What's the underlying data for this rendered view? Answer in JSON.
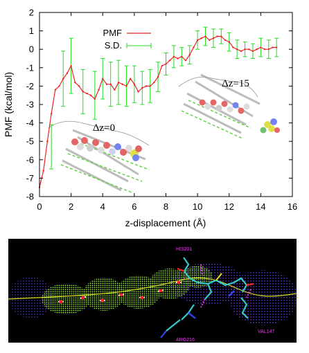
{
  "chart_data": {
    "type": "line",
    "title": "",
    "xlabel": "z-displacement (Å)",
    "ylabel": "PMF (kcal/mol)",
    "xlim": [
      0,
      16
    ],
    "ylim": [
      -8,
      2
    ],
    "xticks": [
      "0",
      "2",
      "4",
      "6",
      "8",
      "10",
      "12",
      "14",
      "16"
    ],
    "yticks": [
      "-8",
      "-7",
      "-6",
      "-5",
      "-4",
      "-3",
      "-2",
      "-1",
      "0",
      "1",
      "2"
    ],
    "legend_position": "top-center",
    "series": [
      {
        "name": "PMF",
        "color": "#ee2222",
        "x": [
          0.0,
          0.25,
          0.5,
          0.75,
          1.0,
          1.25,
          1.5,
          1.75,
          2.0,
          2.25,
          2.5,
          2.75,
          3.0,
          3.25,
          3.5,
          3.75,
          4.0,
          4.25,
          4.5,
          4.75,
          5.0,
          5.25,
          5.5,
          5.75,
          6.0,
          6.25,
          6.5,
          6.75,
          7.0,
          7.25,
          7.5,
          7.75,
          8.0,
          8.25,
          8.5,
          8.75,
          9.0,
          9.25,
          9.5,
          9.75,
          10.0,
          10.25,
          10.5,
          10.75,
          11.0,
          11.25,
          11.5,
          11.75,
          12.0,
          12.25,
          12.5,
          12.75,
          13.0,
          13.25,
          13.5,
          13.75,
          14.0,
          14.25,
          14.5,
          14.75,
          15.0
        ],
        "y": [
          -7.5,
          -6.6,
          -5.0,
          -3.5,
          -2.2,
          -2.0,
          -1.6,
          -1.3,
          -0.9,
          -1.8,
          -2.0,
          -2.3,
          -2.4,
          -2.5,
          -2.7,
          -2.2,
          -1.6,
          -1.9,
          -1.9,
          -2.2,
          -1.8,
          -1.9,
          -2.0,
          -1.6,
          -1.9,
          -2.3,
          -2.1,
          -2.0,
          -2.0,
          -1.8,
          -1.5,
          -0.9,
          -0.8,
          -0.6,
          -0.4,
          -0.5,
          -0.4,
          -0.6,
          -0.3,
          0.1,
          0.5,
          0.6,
          0.7,
          0.5,
          0.6,
          0.7,
          0.7,
          0.5,
          0.4,
          0.1,
          0.0,
          -0.1,
          0.0,
          0.0,
          -0.1,
          0.0,
          0.1,
          0.0,
          0.0,
          0.1,
          0.1
        ]
      },
      {
        "name": "S.D.",
        "color": "#22dd22",
        "type": "errorbar",
        "x": [
          0.75,
          1.5,
          2.0,
          2.75,
          3.5,
          4.0,
          4.5,
          5.0,
          5.5,
          6.0,
          6.5,
          7.0,
          7.5,
          8.0,
          8.5,
          9.0,
          9.5,
          10.0,
          10.5,
          11.0,
          11.5,
          12.0,
          12.5,
          13.0,
          13.5,
          14.0,
          14.5,
          15.0
        ],
        "y": [
          -5.3,
          -1.6,
          -0.9,
          -2.3,
          -2.5,
          -1.6,
          -1.9,
          -1.8,
          -2.0,
          -1.9,
          -2.1,
          -2.0,
          -1.5,
          -0.8,
          -0.4,
          -0.4,
          -0.3,
          0.5,
          0.7,
          0.6,
          0.7,
          0.4,
          0.0,
          0.0,
          -0.1,
          0.1,
          0.0,
          0.1
        ],
        "err": [
          1.2,
          1.5,
          1.5,
          1.2,
          1.3,
          1.1,
          1.2,
          1.2,
          1.1,
          1.0,
          0.9,
          0.9,
          0.8,
          0.6,
          0.6,
          0.5,
          0.5,
          0.5,
          0.5,
          0.5,
          0.4,
          0.5,
          0.5,
          0.4,
          0.4,
          0.5,
          0.5,
          0.5
        ]
      }
    ],
    "annotations": [
      "Δz=0",
      "Δz=15"
    ]
  },
  "lower_panel": {
    "background": "#000000",
    "residue_labels": [
      "HIS201",
      "ARG216",
      "VAL147"
    ],
    "colors": {
      "tunnel": "#99ee44",
      "dots": "#7744ff",
      "path": "#dddd22",
      "carbon": "#33cccc",
      "oxygen": "#ff2222",
      "nitrogen": "#3344ff",
      "label": "#ff33ff"
    }
  }
}
